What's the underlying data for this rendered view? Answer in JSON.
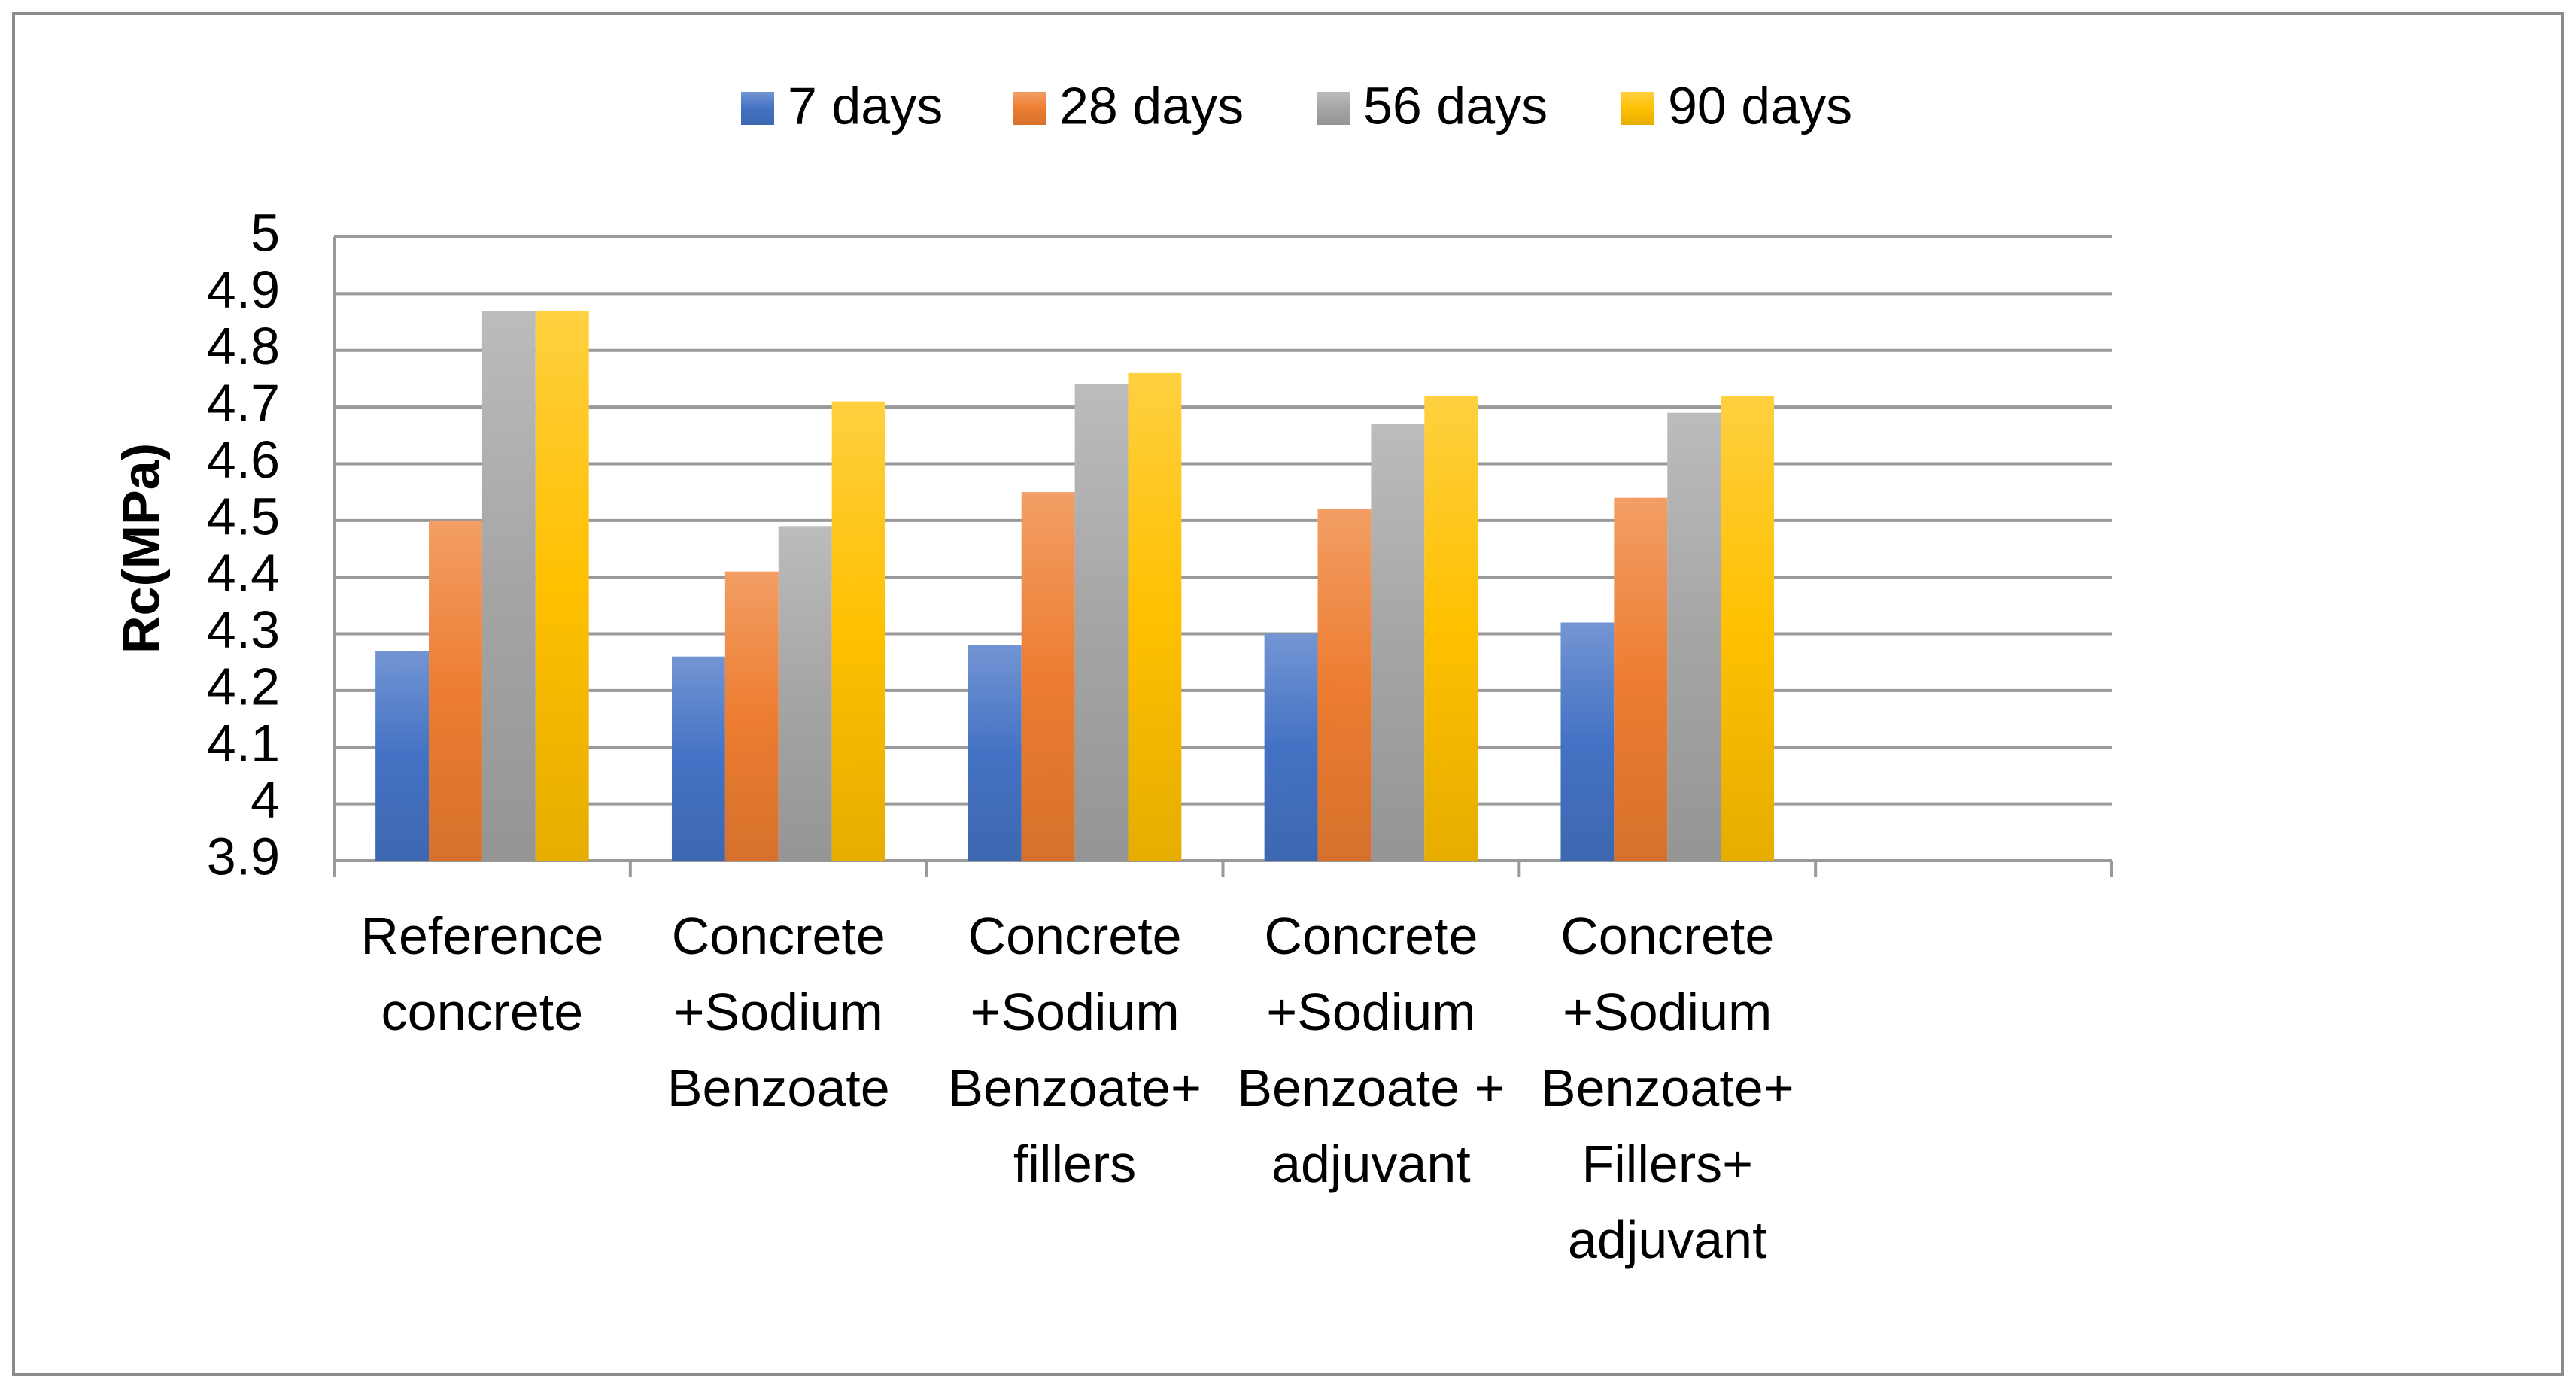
{
  "chart_data": {
    "type": "bar",
    "y_label": "Rc(MPa)",
    "categories": [
      "Reference concrete",
      "Concrete +Sodium Benzoate",
      "Concrete +Sodium Benzoate+ fillers",
      "Concrete +Sodium Benzoate + adjuvant",
      "Concrete +Sodium Benzoate+ Fillers+ adjuvant",
      null
    ],
    "series": [
      {
        "name": "7 days",
        "color": "#4472c4",
        "values": [
          4.27,
          4.26,
          4.28,
          4.3,
          4.32,
          null
        ]
      },
      {
        "name": "28 days",
        "color": "#ed7d31",
        "values": [
          4.5,
          4.41,
          4.55,
          4.52,
          4.54,
          null
        ]
      },
      {
        "name": "56 days",
        "color": "#a5a5a5",
        "values": [
          4.87,
          4.49,
          4.74,
          4.67,
          4.69,
          null
        ]
      },
      {
        "name": "90 days",
        "color": "#ffc000",
        "values": [
          4.87,
          4.71,
          4.76,
          4.72,
          4.72,
          null
        ]
      }
    ],
    "ylim": [
      3.9,
      5
    ],
    "yticks": [
      3.9,
      4,
      4.1,
      4.2,
      4.3,
      4.4,
      4.5,
      4.6,
      4.7,
      4.8,
      4.9,
      5
    ],
    "grid": true,
    "legend": "top"
  }
}
